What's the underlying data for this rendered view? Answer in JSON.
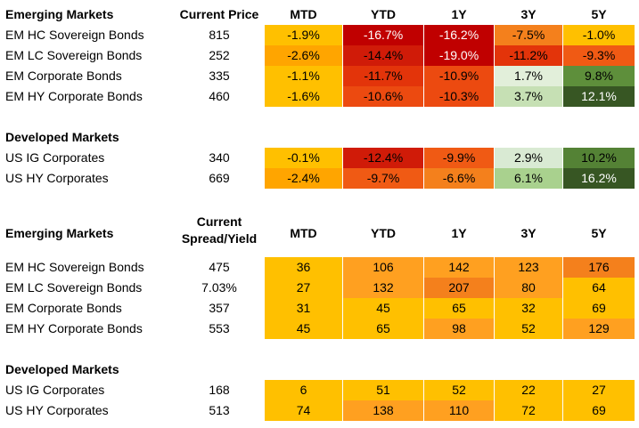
{
  "columns": {
    "name_header_1": "Emerging Markets",
    "price_header": "Current Price",
    "mtd": "MTD",
    "ytd": "YTD",
    "y1": "1Y",
    "y3": "3Y",
    "y5": "5Y"
  },
  "table1": {
    "em_rows": [
      {
        "name": "EM HC Sovereign Bonds",
        "price": "815",
        "vals": [
          "-1.9%",
          "-16.7%",
          "-16.2%",
          "-7.5%",
          "-1.0%"
        ],
        "colors": [
          "#ffc000",
          "#c00000",
          "#c00000",
          "#f4801c",
          "#ffc000"
        ]
      },
      {
        "name": "EM LC Sovereign Bonds",
        "price": "252",
        "vals": [
          "-2.6%",
          "-14.4%",
          "-19.0%",
          "-11.2%",
          "-9.3%"
        ],
        "colors": [
          "#ffa500",
          "#d01b08",
          "#c00000",
          "#e3340a",
          "#f05a14"
        ]
      },
      {
        "name": "EM Corporate Bonds",
        "price": "335",
        "vals": [
          "-1.1%",
          "-11.7%",
          "-10.9%",
          "1.7%",
          "9.8%"
        ],
        "colors": [
          "#ffc000",
          "#e3340a",
          "#ec4a10",
          "#e2efda",
          "#5e8f3b"
        ]
      },
      {
        "name": "EM HY Corporate Bonds",
        "price": "460",
        "vals": [
          "-1.6%",
          "-10.6%",
          "-10.3%",
          "3.7%",
          "12.1%"
        ],
        "colors": [
          "#ffc000",
          "#ec4a10",
          "#ec4a10",
          "#c6e0b4",
          "#375623"
        ]
      }
    ],
    "dm_title": "Developed Markets",
    "dm_rows": [
      {
        "name": "US IG Corporates",
        "price": "340",
        "vals": [
          "-0.1%",
          "-12.4%",
          "-9.9%",
          "2.9%",
          "10.2%"
        ],
        "colors": [
          "#ffc000",
          "#d01b08",
          "#f05a14",
          "#d9ead3",
          "#548235"
        ]
      },
      {
        "name": "US HY Corporates",
        "price": "669",
        "vals": [
          "-2.4%",
          "-9.7%",
          "-6.6%",
          "6.1%",
          "16.2%"
        ],
        "colors": [
          "#ffa500",
          "#f05a14",
          "#f4801c",
          "#a9d18e",
          "#375623"
        ]
      }
    ]
  },
  "table2": {
    "em_title": "Emerging Markets",
    "spread_header_line1": "Current",
    "spread_header_line2": "Spread/Yield",
    "em_rows": [
      {
        "name": "EM HC Sovereign Bonds",
        "spread": "475",
        "vals": [
          "36",
          "106",
          "142",
          "123",
          "176"
        ],
        "colors": [
          "#ffc000",
          "#ffa020",
          "#ffa020",
          "#ffa020",
          "#f4801c"
        ]
      },
      {
        "name": "EM LC Sovereign Bonds",
        "spread": "7.03%",
        "vals": [
          "27",
          "132",
          "207",
          "80",
          "64"
        ],
        "colors": [
          "#ffc000",
          "#ffa020",
          "#f4801c",
          "#ffa020",
          "#ffc000"
        ]
      },
      {
        "name": "EM Corporate Bonds",
        "spread": "357",
        "vals": [
          "31",
          "45",
          "65",
          "32",
          "69"
        ],
        "colors": [
          "#ffc000",
          "#ffc000",
          "#ffc000",
          "#ffc000",
          "#ffc000"
        ]
      },
      {
        "name": "EM HY Corporate Bonds",
        "spread": "553",
        "vals": [
          "45",
          "65",
          "98",
          "52",
          "129"
        ],
        "colors": [
          "#ffc000",
          "#ffc000",
          "#ffa020",
          "#ffc000",
          "#ffa020"
        ]
      }
    ],
    "dm_title": "Developed Markets",
    "dm_rows": [
      {
        "name": "US IG Corporates",
        "spread": "168",
        "vals": [
          "6",
          "51",
          "52",
          "22",
          "27"
        ],
        "colors": [
          "#ffc000",
          "#ffc000",
          "#ffc000",
          "#ffc000",
          "#ffc000"
        ]
      },
      {
        "name": "US HY Corporates",
        "spread": "513",
        "vals": [
          "74",
          "138",
          "110",
          "72",
          "69"
        ],
        "colors": [
          "#ffc000",
          "#ffa020",
          "#ffa020",
          "#ffc000",
          "#ffc000"
        ]
      }
    ]
  }
}
